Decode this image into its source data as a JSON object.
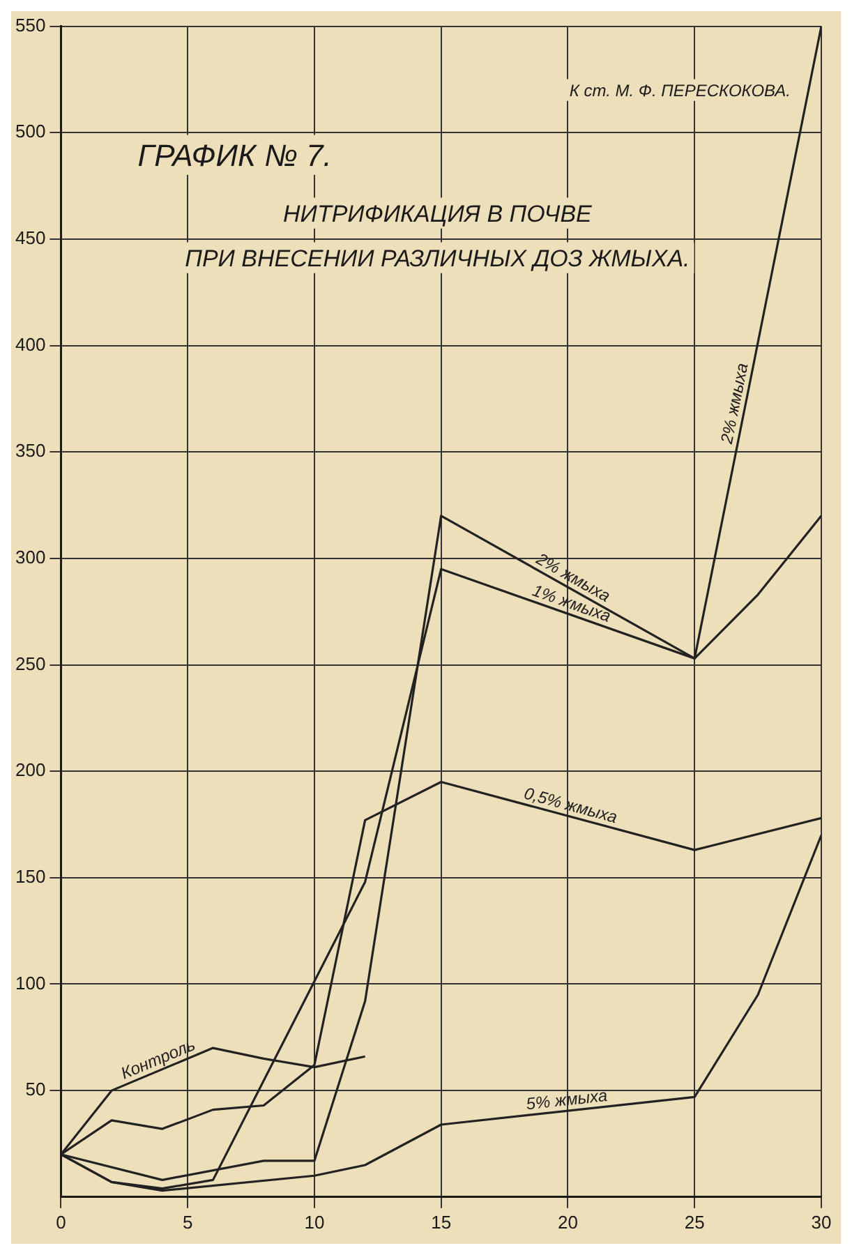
{
  "chart_data": {
    "type": "line",
    "title": "ГРАФИК № 7.",
    "subtitle": "НИТРИФИКАЦИЯ В ПОЧВЕ ПРИ ВНЕСЕНИИ РАЗЛИЧНЫХ ДОЗ ЖМЫХА.",
    "annotations": [
      "К ст. М. Ф. ПЕРЕСКОКОВА.",
      "2% жмыха"
    ],
    "series": [
      {
        "name": "Контроль",
        "color": "#222222",
        "x": [
          0,
          2,
          6,
          8,
          10,
          12
        ],
        "values": [
          20,
          50,
          70,
          65,
          61,
          66
        ]
      },
      {
        "name": "0,5% жмыха",
        "color": "#222222",
        "x": [
          0,
          2,
          4,
          6,
          8,
          10,
          12,
          15,
          25,
          30
        ],
        "values": [
          20,
          36,
          32,
          41,
          43,
          62,
          177,
          195,
          163,
          178
        ]
      },
      {
        "name": "1% жмыха",
        "color": "#222222",
        "x": [
          0,
          2,
          4,
          6,
          12,
          15,
          25,
          27.5,
          30
        ],
        "values": [
          20,
          7,
          4,
          8,
          148,
          295,
          253,
          283,
          320
        ]
      },
      {
        "name": "2% жмыха",
        "color": "#222222",
        "x": [
          0,
          4,
          8,
          10,
          12,
          15,
          25,
          30
        ],
        "values": [
          20,
          8,
          17,
          17,
          92,
          320,
          253,
          550
        ]
      },
      {
        "name": "5% жмыха",
        "color": "#222222",
        "x": [
          0,
          2,
          4,
          10,
          12,
          15,
          25,
          27.5,
          30
        ],
        "values": [
          20,
          7,
          3,
          10,
          15,
          34,
          47,
          95,
          170
        ]
      }
    ],
    "xlim": [
      0,
      30
    ],
    "xticks": [
      0,
      5,
      10,
      15,
      20,
      25,
      30
    ],
    "ylim": [
      0,
      550
    ],
    "yticks": [
      50,
      100,
      150,
      200,
      250,
      300,
      350,
      400,
      450,
      500,
      550
    ],
    "grid": true,
    "legend": false,
    "marker": "none",
    "line_style": "solid"
  }
}
